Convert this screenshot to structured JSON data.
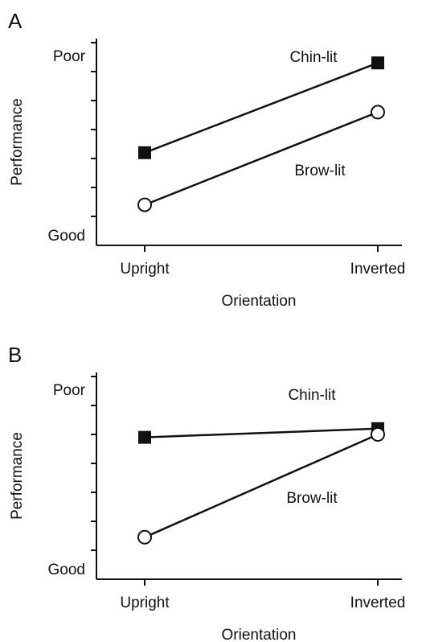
{
  "chart_data": [
    {
      "type": "line",
      "title": "A",
      "xlabel": "Orientation",
      "ylabel": "Performance",
      "categories": [
        "Upright",
        "Inverted"
      ],
      "series": [
        {
          "name": "Chin-lit",
          "color": "#111111",
          "marker": "square",
          "values": [
            3.2,
            6.3
          ]
        },
        {
          "name": "Brow-lit",
          "color": "#111111",
          "marker": "circle",
          "values": [
            1.4,
            4.6
          ]
        }
      ],
      "ylim": [
        0,
        7
      ],
      "yticks": [
        {
          "value": 0.3,
          "label": "Good"
        },
        {
          "value": 6.5,
          "label": "Poor"
        }
      ],
      "minor_yticks": [
        1,
        2,
        3,
        4,
        5,
        6,
        7
      ]
    },
    {
      "type": "line",
      "title": "B",
      "xlabel": "Orientation",
      "ylabel": "Performance",
      "categories": [
        "Upright",
        "Inverted"
      ],
      "series": [
        {
          "name": "Chin-lit",
          "color": "#111111",
          "marker": "square",
          "values": [
            4.9,
            5.2
          ]
        },
        {
          "name": "Brow-lit",
          "color": "#111111",
          "marker": "circle",
          "values": [
            1.45,
            5.0
          ]
        }
      ],
      "ylim": [
        0,
        7
      ],
      "yticks": [
        {
          "value": 0.3,
          "label": "Good"
        },
        {
          "value": 6.5,
          "label": "Poor"
        }
      ],
      "minor_yticks": [
        1,
        2,
        3,
        4,
        5,
        6,
        7
      ]
    }
  ]
}
